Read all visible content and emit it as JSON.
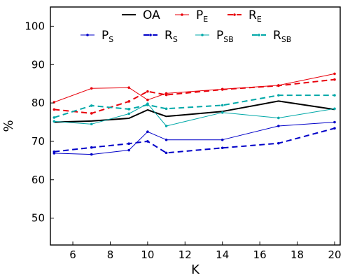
{
  "chart_data": {
    "type": "line",
    "title": "",
    "xlabel": "K",
    "ylabel": "%",
    "xlim": [
      4.8,
      20.3
    ],
    "ylim": [
      43,
      105
    ],
    "xticks": [
      6,
      8,
      10,
      12,
      14,
      16,
      18,
      20
    ],
    "yticks": [
      50,
      60,
      70,
      80,
      90,
      100
    ],
    "grid": false,
    "legend_position": "top",
    "x": [
      5,
      7,
      9,
      10,
      11,
      14,
      17,
      20
    ],
    "series": [
      {
        "name": "OA",
        "base": "OA",
        "sub": "",
        "color": "#000000",
        "dash": "solid",
        "width": 2,
        "markers": false,
        "values": [
          75.0,
          75.3,
          76.0,
          78.2,
          76.5,
          77.8,
          80.5,
          78.3
        ]
      },
      {
        "name": "PE",
        "base": "P",
        "sub": "E",
        "color": "#e8000b",
        "dash": "solid",
        "width": 1,
        "markers": true,
        "values": [
          80.2,
          83.8,
          84.0,
          80.8,
          82.5,
          83.6,
          84.6,
          87.6
        ]
      },
      {
        "name": "RE",
        "base": "R",
        "sub": "E",
        "color": "#e8000b",
        "dash": "dashed",
        "width": 2,
        "markers": true,
        "values": [
          78.3,
          77.3,
          80.4,
          83.0,
          82.1,
          83.5,
          84.5,
          86.1
        ]
      },
      {
        "name": "PS",
        "base": "P",
        "sub": "S",
        "color": "#0000c8",
        "dash": "solid",
        "width": 1,
        "markers": true,
        "values": [
          66.9,
          66.6,
          67.7,
          72.5,
          70.4,
          70.4,
          74.0,
          75.0
        ]
      },
      {
        "name": "RS",
        "base": "R",
        "sub": "S",
        "color": "#0000c8",
        "dash": "dashed",
        "width": 2,
        "markers": true,
        "values": [
          67.3,
          68.4,
          69.4,
          70.0,
          67.0,
          68.3,
          69.5,
          73.4
        ]
      },
      {
        "name": "PSB",
        "base": "P",
        "sub": "SB",
        "color": "#00a8a8",
        "dash": "solid",
        "width": 1,
        "markers": true,
        "values": [
          75.2,
          74.5,
          77.2,
          79.8,
          74.0,
          77.5,
          76.1,
          78.5
        ]
      },
      {
        "name": "RSB",
        "base": "R",
        "sub": "SB",
        "color": "#00a8a8",
        "dash": "dashed",
        "width": 2,
        "markers": true,
        "values": [
          76.2,
          79.3,
          78.4,
          79.5,
          78.5,
          79.4,
          82.0,
          82.0
        ]
      }
    ]
  }
}
